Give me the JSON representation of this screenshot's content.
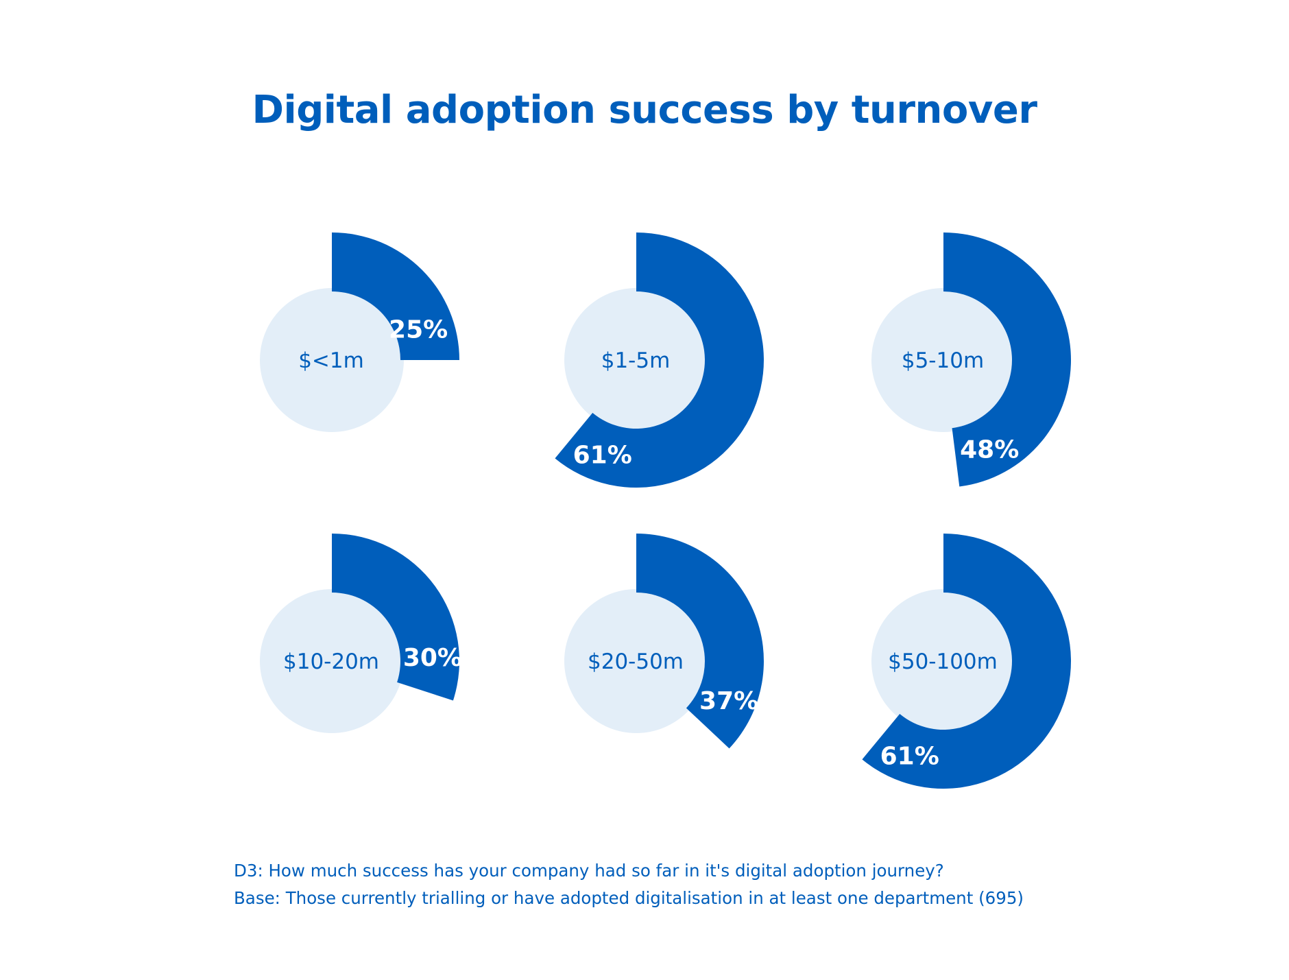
{
  "chart_data": {
    "type": "radial-bar",
    "title": "Digital adoption success by turnover",
    "categories": [
      "$<1m",
      "$1-5m",
      "$5-10m",
      "$10-20m",
      "$20-50m",
      "$50-100m"
    ],
    "values": [
      25,
      61,
      48,
      30,
      37,
      61
    ],
    "value_labels": [
      "25%",
      "61%",
      "48%",
      "30%",
      "37%",
      "61%"
    ],
    "unit": "%",
    "max": 100
  },
  "colors": {
    "accent": "#005ebb",
    "inner_circle": "#e3eef8",
    "value_text": "#ffffff",
    "category_text": "#005ebb"
  },
  "footnotes": {
    "question": "D3: How much success has your company had so far in it's digital adoption journey?",
    "base": "Base: Those currently trialling or have adopted digitalisation in at least one department (695)"
  }
}
